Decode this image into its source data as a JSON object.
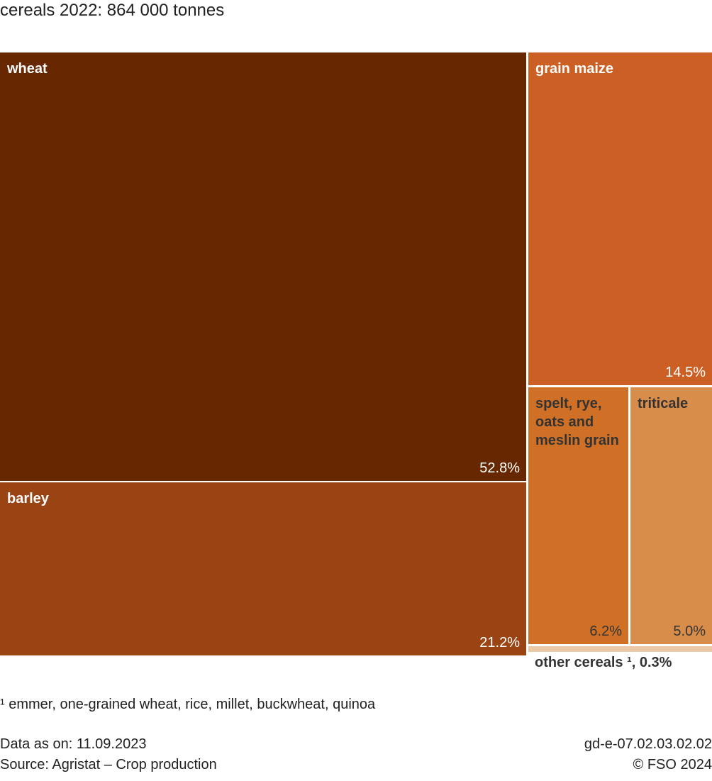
{
  "title": "cereals 2022: 864 000 tonnes",
  "chart_data": {
    "type": "treemap",
    "title": "cereals 2022: 864 000 tonnes",
    "total": "864 000 tonnes",
    "year": 2022,
    "items": [
      {
        "name": "wheat",
        "label": "wheat",
        "percent": 52.8,
        "value_text": "52.8%",
        "color": "#672700",
        "text_color": "light"
      },
      {
        "name": "barley",
        "label": "barley",
        "percent": 21.2,
        "value_text": "21.2%",
        "color": "#9b4413",
        "text_color": "light"
      },
      {
        "name": "grain maize",
        "label": "grain maize",
        "percent": 14.5,
        "value_text": "14.5%",
        "color": "#cc6024",
        "text_color": "light"
      },
      {
        "name": "spelt, rye, oats and meslin grain",
        "label": "spelt, rye, oats and meslin grain",
        "percent": 6.2,
        "value_text": "6.2%",
        "color": "#d07026",
        "text_color": "dark"
      },
      {
        "name": "triticale",
        "label": "triticale",
        "percent": 5.0,
        "value_text": "5.0%",
        "color": "#d98d4b",
        "text_color": "dark"
      },
      {
        "name": "other cereals",
        "label": "other cereals ¹, 0.3%",
        "percent": 0.3,
        "value_text": "0.3%",
        "color": "#ebc9a6",
        "text_color": "dark"
      }
    ]
  },
  "footnote": "¹ emmer, one-grained wheat, rice, millet, buckwheat, quinoa",
  "data_as_on": "Data as on: 11.09.2023",
  "source": "Source: Agristat – Crop production",
  "code": "gd-e-07.02.03.02.02",
  "copyright": "© FSO 2024"
}
